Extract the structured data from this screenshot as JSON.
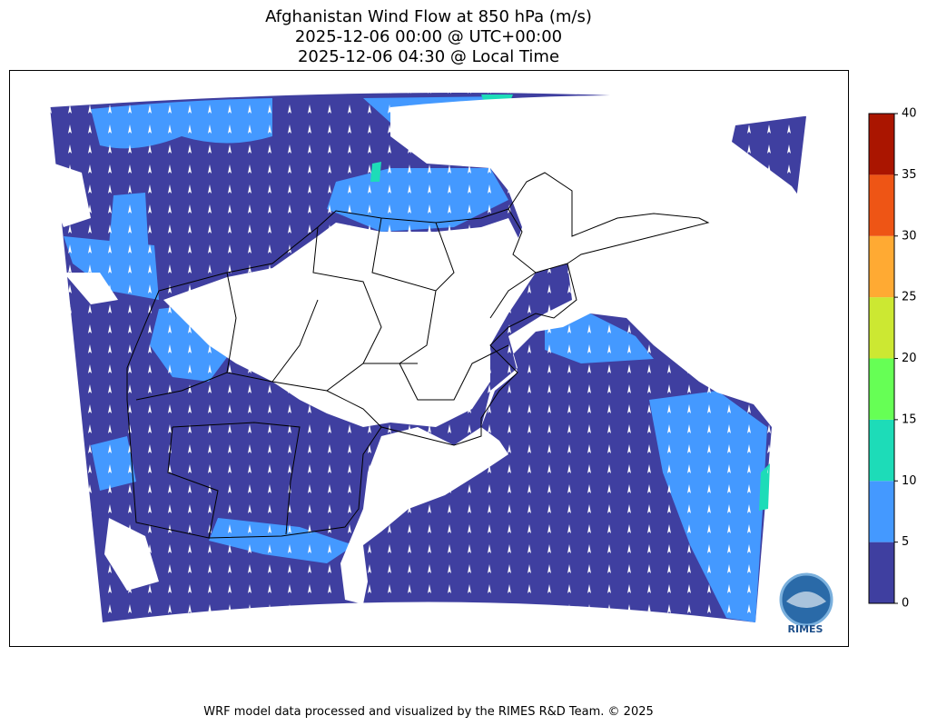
{
  "title": [
    "Afghanistan Wind Flow at 850 hPa (m/s)",
    "2025-12-06 00:00 @ UTC+00:00",
    "2025-12-06 04:30 @ Local Time"
  ],
  "colorbar": {
    "ticks": [
      0,
      5,
      10,
      15,
      20,
      25,
      30,
      35,
      40
    ],
    "colors": [
      "#3f3fa0",
      "#4499ff",
      "#1ddcb8",
      "#66ff55",
      "#cce832",
      "#ffaa33",
      "#ee5515",
      "#aa1500"
    ]
  },
  "footer": "WRF model data processed and visualized by the RIMES R&D Team. © 2025",
  "logo": "RIMES"
}
